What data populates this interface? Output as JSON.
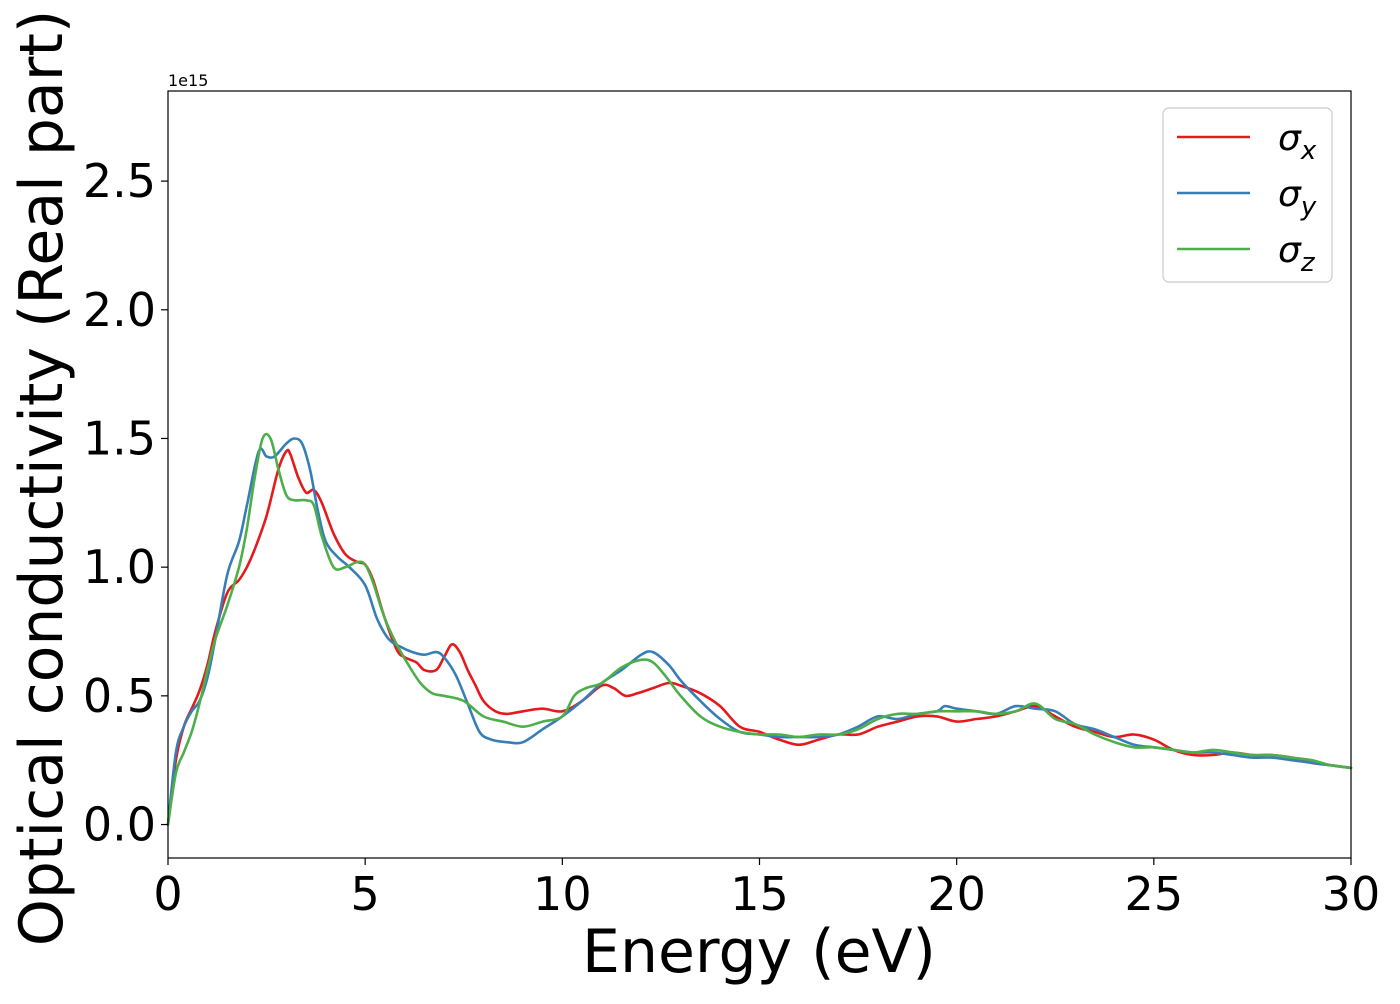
{
  "chart_data": {
    "type": "line",
    "title": "",
    "xlabel": "Energy (eV)",
    "ylabel": "Optical conductivity (Real part)",
    "y_offset_label": "1e15",
    "xlim": [
      0,
      30
    ],
    "ylim": [
      -0.13,
      2.85
    ],
    "xticks": [
      0,
      5,
      10,
      15,
      20,
      25,
      30
    ],
    "xtick_labels": [
      "0",
      "5",
      "10",
      "15",
      "20",
      "25",
      "30"
    ],
    "yticks": [
      0.0,
      0.5,
      1.0,
      1.5,
      2.0,
      2.5
    ],
    "ytick_labels": [
      "0.0",
      "0.5",
      "1.0",
      "1.5",
      "2.0",
      "2.5"
    ],
    "grid": false,
    "legend_position": "top-right",
    "series": [
      {
        "name": "σx",
        "base": "σ",
        "sub": "x",
        "color": "#e41a1c",
        "x": [
          0,
          0.2,
          0.4,
          0.6,
          0.8,
          1.0,
          1.2,
          1.5,
          1.8,
          2.0,
          2.2,
          2.5,
          2.8,
          3.0,
          3.1,
          3.3,
          3.5,
          3.7,
          3.9,
          4.2,
          4.5,
          4.8,
          5.0,
          5.2,
          5.5,
          5.8,
          6.0,
          6.3,
          6.5,
          6.8,
          7.0,
          7.2,
          7.4,
          7.6,
          7.8,
          8.0,
          8.3,
          8.6,
          9.0,
          9.5,
          10.0,
          10.5,
          11.0,
          11.3,
          11.6,
          11.9,
          12.3,
          12.7,
          13.0,
          13.5,
          14.0,
          14.5,
          15.0,
          15.5,
          16.0,
          16.5,
          17.0,
          17.5,
          18.0,
          18.5,
          19.0,
          19.5,
          20.0,
          20.5,
          21.0,
          21.5,
          22.0,
          22.5,
          23.0,
          23.5,
          24.0,
          24.5,
          25.0,
          25.5,
          26.0,
          26.5,
          27.0,
          27.5,
          28.0,
          28.5,
          29.0,
          29.5,
          30.0
        ],
        "y": [
          0.0,
          0.25,
          0.38,
          0.45,
          0.52,
          0.62,
          0.75,
          0.9,
          0.95,
          1.0,
          1.07,
          1.2,
          1.38,
          1.45,
          1.44,
          1.35,
          1.29,
          1.3,
          1.25,
          1.13,
          1.05,
          1.02,
          1.01,
          0.95,
          0.8,
          0.68,
          0.65,
          0.63,
          0.6,
          0.6,
          0.65,
          0.7,
          0.67,
          0.6,
          0.54,
          0.48,
          0.44,
          0.43,
          0.44,
          0.45,
          0.44,
          0.48,
          0.54,
          0.53,
          0.5,
          0.51,
          0.53,
          0.55,
          0.54,
          0.51,
          0.46,
          0.38,
          0.36,
          0.33,
          0.31,
          0.33,
          0.35,
          0.35,
          0.38,
          0.4,
          0.42,
          0.42,
          0.4,
          0.41,
          0.42,
          0.44,
          0.46,
          0.42,
          0.38,
          0.36,
          0.34,
          0.35,
          0.33,
          0.29,
          0.27,
          0.27,
          0.28,
          0.27,
          0.27,
          0.26,
          0.24,
          0.23,
          0.22
        ]
      },
      {
        "name": "σy",
        "base": "σ",
        "sub": "y",
        "color": "#377eb8",
        "x": [
          0,
          0.2,
          0.4,
          0.6,
          0.8,
          1.0,
          1.2,
          1.5,
          1.8,
          2.0,
          2.3,
          2.5,
          2.7,
          3.0,
          3.2,
          3.4,
          3.6,
          3.8,
          4.0,
          4.3,
          4.6,
          5.0,
          5.3,
          5.6,
          5.9,
          6.2,
          6.5,
          6.8,
          7.0,
          7.3,
          7.6,
          7.9,
          8.2,
          8.6,
          9.0,
          9.5,
          10.0,
          10.5,
          11.0,
          11.5,
          12.0,
          12.3,
          12.7,
          13.0,
          13.5,
          14.0,
          14.5,
          15.0,
          15.5,
          16.0,
          16.5,
          17.0,
          17.5,
          18.0,
          18.5,
          19.0,
          19.5,
          19.7,
          20.0,
          20.5,
          21.0,
          21.5,
          22.0,
          22.5,
          23.0,
          23.5,
          24.0,
          24.5,
          25.0,
          25.5,
          26.0,
          26.5,
          27.0,
          27.5,
          28.0,
          28.5,
          29.0,
          29.5,
          30.0
        ],
        "y": [
          0.0,
          0.28,
          0.38,
          0.44,
          0.48,
          0.57,
          0.72,
          0.97,
          1.1,
          1.24,
          1.45,
          1.43,
          1.43,
          1.48,
          1.5,
          1.48,
          1.38,
          1.22,
          1.1,
          1.04,
          1.0,
          0.93,
          0.8,
          0.72,
          0.69,
          0.67,
          0.66,
          0.67,
          0.65,
          0.58,
          0.47,
          0.36,
          0.33,
          0.32,
          0.32,
          0.37,
          0.42,
          0.48,
          0.55,
          0.6,
          0.66,
          0.67,
          0.62,
          0.56,
          0.48,
          0.41,
          0.36,
          0.35,
          0.34,
          0.34,
          0.34,
          0.35,
          0.38,
          0.42,
          0.41,
          0.43,
          0.44,
          0.46,
          0.45,
          0.44,
          0.43,
          0.46,
          0.45,
          0.44,
          0.39,
          0.37,
          0.34,
          0.31,
          0.3,
          0.29,
          0.28,
          0.28,
          0.27,
          0.26,
          0.26,
          0.25,
          0.24,
          0.23,
          0.22
        ]
      },
      {
        "name": "σz",
        "base": "σ",
        "sub": "z",
        "color": "#4daf4a",
        "x": [
          0,
          0.2,
          0.4,
          0.6,
          0.8,
          1.0,
          1.2,
          1.5,
          1.8,
          2.0,
          2.2,
          2.4,
          2.6,
          2.8,
          3.0,
          3.2,
          3.5,
          3.7,
          3.9,
          4.2,
          4.5,
          4.8,
          5.0,
          5.2,
          5.5,
          5.8,
          6.1,
          6.4,
          6.7,
          7.0,
          7.5,
          8.0,
          8.5,
          9.0,
          9.5,
          10.0,
          10.3,
          10.6,
          11.0,
          11.5,
          12.0,
          12.3,
          12.6,
          13.0,
          13.5,
          14.0,
          14.5,
          15.0,
          15.5,
          16.0,
          16.5,
          17.0,
          17.5,
          18.0,
          18.5,
          19.0,
          19.5,
          20.0,
          20.5,
          21.0,
          21.5,
          22.0,
          22.5,
          23.0,
          23.5,
          24.0,
          24.5,
          25.0,
          25.5,
          26.0,
          26.5,
          27.0,
          27.5,
          28.0,
          28.5,
          29.0,
          29.5,
          30.0
        ],
        "y": [
          0.0,
          0.2,
          0.28,
          0.36,
          0.47,
          0.6,
          0.72,
          0.85,
          1.0,
          1.15,
          1.35,
          1.5,
          1.5,
          1.38,
          1.28,
          1.26,
          1.26,
          1.24,
          1.12,
          1.0,
          1.0,
          1.02,
          1.01,
          0.94,
          0.8,
          0.7,
          0.62,
          0.55,
          0.51,
          0.5,
          0.48,
          0.42,
          0.4,
          0.38,
          0.4,
          0.42,
          0.5,
          0.53,
          0.55,
          0.61,
          0.64,
          0.63,
          0.58,
          0.5,
          0.42,
          0.38,
          0.36,
          0.35,
          0.35,
          0.34,
          0.35,
          0.35,
          0.37,
          0.41,
          0.43,
          0.43,
          0.44,
          0.44,
          0.44,
          0.43,
          0.44,
          0.47,
          0.41,
          0.39,
          0.35,
          0.32,
          0.3,
          0.3,
          0.29,
          0.28,
          0.29,
          0.28,
          0.27,
          0.27,
          0.26,
          0.25,
          0.23,
          0.22
        ]
      }
    ]
  }
}
